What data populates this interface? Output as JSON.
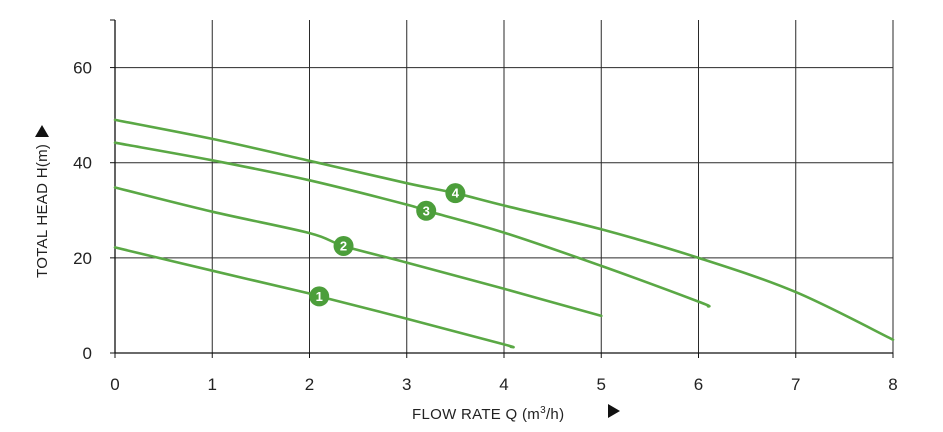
{
  "chart_data": {
    "type": "line",
    "xlabel": "FLOW RATE Q (m³/h)",
    "xlabel_parts": {
      "prefix": "FLOW RATE Q (m",
      "sup": "3",
      "suffix": "/h)"
    },
    "ylabel": "TOTAL HEAD H(m)",
    "xlim": [
      0,
      8
    ],
    "ylim": [
      0,
      70
    ],
    "x_ticks": [
      0,
      1,
      2,
      3,
      4,
      5,
      6,
      7,
      8
    ],
    "y_ticks": [
      0,
      20,
      40,
      60
    ],
    "grid_x": [
      1,
      2,
      3,
      4,
      5,
      6,
      7,
      8
    ],
    "grid_y": [
      20,
      40,
      60
    ],
    "grid": true,
    "line_color": "#5aa845",
    "marker_color": "#4c9e3b",
    "series": [
      {
        "marker_label": "1",
        "points": [
          [
            0,
            22.2
          ],
          [
            1,
            17.3
          ],
          [
            2,
            12.5
          ],
          [
            2.1,
            11.9
          ],
          [
            3,
            7.2
          ],
          [
            4,
            1.8
          ],
          [
            4.07,
            1.3
          ]
        ],
        "marker_at": [
          2.1,
          11.9
        ]
      },
      {
        "marker_label": "2",
        "points": [
          [
            0,
            34.8
          ],
          [
            1,
            29.7
          ],
          [
            2,
            25.2
          ],
          [
            2.35,
            22.5
          ],
          [
            3,
            19.0
          ],
          [
            4,
            13.5
          ],
          [
            5,
            7.8
          ]
        ],
        "marker_at": [
          2.35,
          22.5
        ]
      },
      {
        "marker_label": "3",
        "points": [
          [
            0,
            44.2
          ],
          [
            1,
            40.5
          ],
          [
            2,
            36.3
          ],
          [
            3,
            31.2
          ],
          [
            3.2,
            29.9
          ],
          [
            4,
            25.3
          ],
          [
            5,
            18.3
          ],
          [
            6,
            10.8
          ],
          [
            6.1,
            9.8
          ]
        ],
        "marker_at": [
          3.2,
          29.9
        ]
      },
      {
        "marker_label": "4",
        "points": [
          [
            0,
            49.0
          ],
          [
            1,
            45.0
          ],
          [
            2,
            40.4
          ],
          [
            3,
            35.7
          ],
          [
            3.5,
            33.6
          ],
          [
            4,
            31.0
          ],
          [
            5,
            26.0
          ],
          [
            6,
            20.0
          ],
          [
            7,
            12.8
          ],
          [
            8,
            2.8
          ]
        ],
        "marker_at": [
          3.5,
          33.6
        ]
      }
    ]
  }
}
